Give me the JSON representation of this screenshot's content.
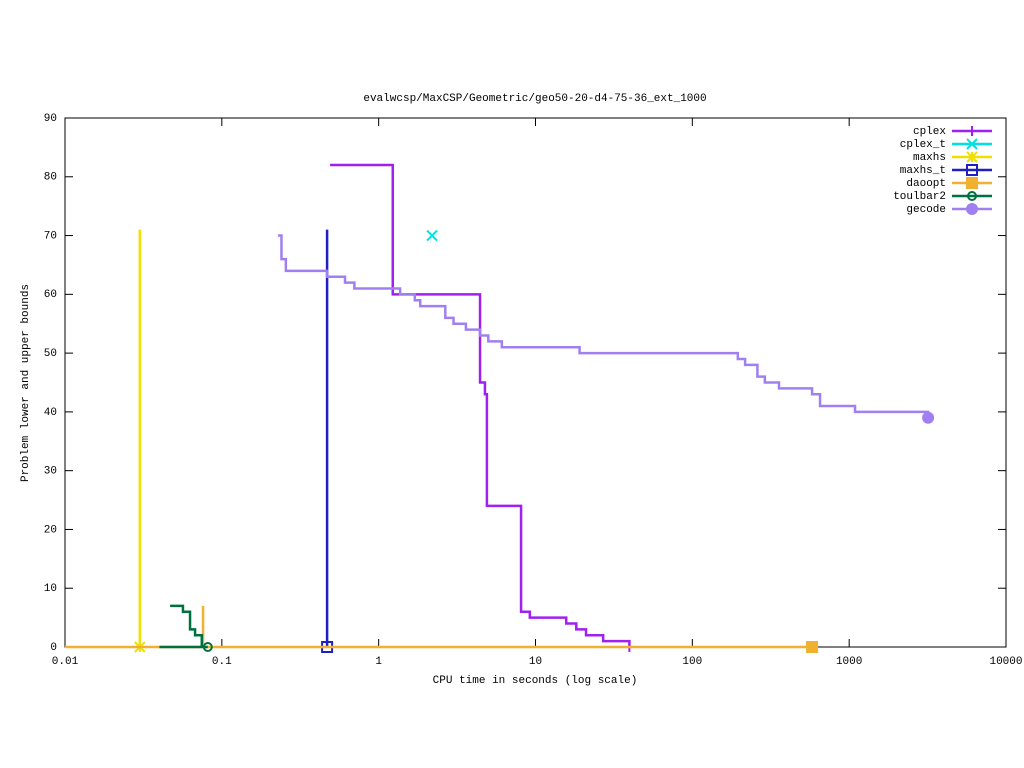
{
  "chart_data": {
    "type": "line",
    "title": "evalwcsp/MaxCSP/Geometric/geo50-20-d4-75-36_ext_1000",
    "x_label": "CPU time in seconds (log scale)",
    "y_label": "Problem lower and upper bounds",
    "x_log": true,
    "xlim": [
      0.01,
      10000
    ],
    "xticks": [
      0.01,
      0.1,
      1,
      10,
      100,
      1000,
      10000
    ],
    "ylim": [
      0,
      90
    ],
    "yticks": [
      0,
      10,
      20,
      30,
      40,
      50,
      60,
      70,
      80,
      90
    ],
    "legend": "top-right",
    "series": [
      {
        "name": "cplex",
        "color": "#a020f0",
        "marker": "plus",
        "x": [
          0.49,
          1.23,
          1.23,
          4.43,
          4.43,
          4.76,
          4.76,
          4.9,
          4.9,
          8.09,
          8.09,
          9.2,
          9.2,
          15.7,
          15.7,
          18.2,
          18.2,
          21,
          21,
          27,
          27,
          39.7,
          39.7
        ],
        "values": [
          82,
          82,
          60,
          60,
          45,
          45,
          43,
          43,
          24,
          24,
          6,
          6,
          5,
          5,
          4,
          4,
          3,
          3,
          2,
          2,
          1,
          1,
          0
        ]
      },
      {
        "name": "cplex_t",
        "color": "#00e0e0",
        "marker": "cross",
        "x": [
          2.19
        ],
        "values": [
          70
        ]
      },
      {
        "name": "maxhs",
        "color": "#f0e000",
        "marker": "star",
        "x": [
          0.03,
          0.03
        ],
        "values": [
          71,
          0
        ]
      },
      {
        "name": "maxhs_t",
        "color": "#2020c0",
        "marker": "square",
        "x": [
          0.469,
          0.469
        ],
        "values": [
          71,
          0
        ]
      },
      {
        "name": "daoopt",
        "color": "#f0b030",
        "marker": "filled-square",
        "x": [
          0.0759,
          0.0759,
          0.01,
          580
        ],
        "values": [
          7,
          0,
          0,
          0
        ]
      },
      {
        "name": "toulbar2",
        "color": "#007040",
        "marker": "circle",
        "x": [
          0.0468,
          0.0565,
          0.0565,
          0.0627,
          0.0627,
          0.0675,
          0.0675,
          0.0745,
          0.0745,
          0.04,
          0.0814
        ],
        "values": [
          7,
          7,
          6,
          6,
          3,
          3,
          2,
          2,
          0,
          0,
          0
        ]
      },
      {
        "name": "gecode",
        "color": "#a080f0",
        "marker": "filled-circle",
        "x": [
          0.228,
          0.24,
          0.24,
          0.256,
          0.256,
          0.469,
          0.469,
          0.61,
          0.61,
          0.7,
          0.7,
          1.37,
          1.37,
          1.7,
          1.7,
          1.84,
          1.84,
          2.66,
          2.66,
          3.0,
          3.0,
          3.6,
          3.6,
          4.43,
          4.43,
          5.0,
          5.0,
          6.1,
          6.1,
          19.1,
          19.1,
          195,
          195,
          217,
          217,
          260,
          260,
          290,
          290,
          357,
          357,
          580,
          580,
          652,
          652,
          1090,
          1090,
          3186,
          3186
        ],
        "values": [
          70,
          70,
          66,
          66,
          64,
          64,
          63,
          63,
          62,
          62,
          61,
          61,
          60,
          60,
          59,
          59,
          58,
          58,
          56,
          56,
          55,
          55,
          54,
          54,
          53,
          53,
          52,
          52,
          51,
          51,
          50,
          50,
          49,
          49,
          48,
          48,
          46,
          46,
          45,
          45,
          44,
          44,
          43,
          43,
          41,
          41,
          40,
          40,
          39
        ]
      }
    ]
  }
}
